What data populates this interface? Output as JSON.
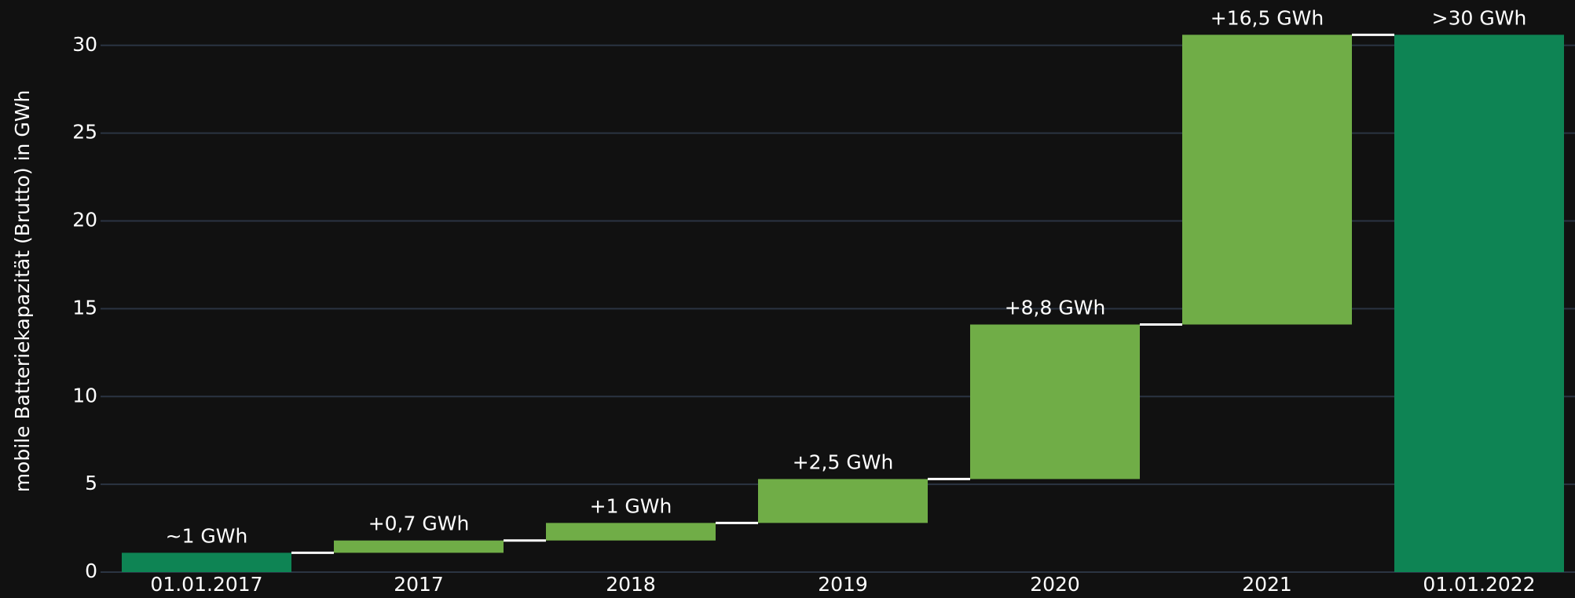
{
  "chart_data": {
    "type": "waterfall",
    "y_axis_label": "mobile Batteriekapazität (Brutto) in GWh",
    "categories": [
      "01.01.2017",
      "2017",
      "2018",
      "2019",
      "2020",
      "2021",
      "01.01.2022"
    ],
    "measure": [
      "absolute",
      "relative",
      "relative",
      "relative",
      "relative",
      "relative",
      "total"
    ],
    "values": [
      1.1,
      0.7,
      1,
      2.5,
      8.8,
      16.5,
      30.6
    ],
    "value_labels": [
      "~1 GWh",
      "+0,7 GWh",
      "+1 GWh",
      "+2,5 GWh",
      "+8,8 GWh",
      "+16,5 GWh",
      ">30 GWh"
    ],
    "colors": {
      "absolute": "#0e8454",
      "relative": "#70ad47",
      "total": "#0e8454"
    },
    "connector_color": "#ffffff",
    "ylim": [
      0,
      32
    ],
    "yticks": [
      0,
      5,
      10,
      15,
      20,
      25,
      30
    ],
    "grid": true
  }
}
